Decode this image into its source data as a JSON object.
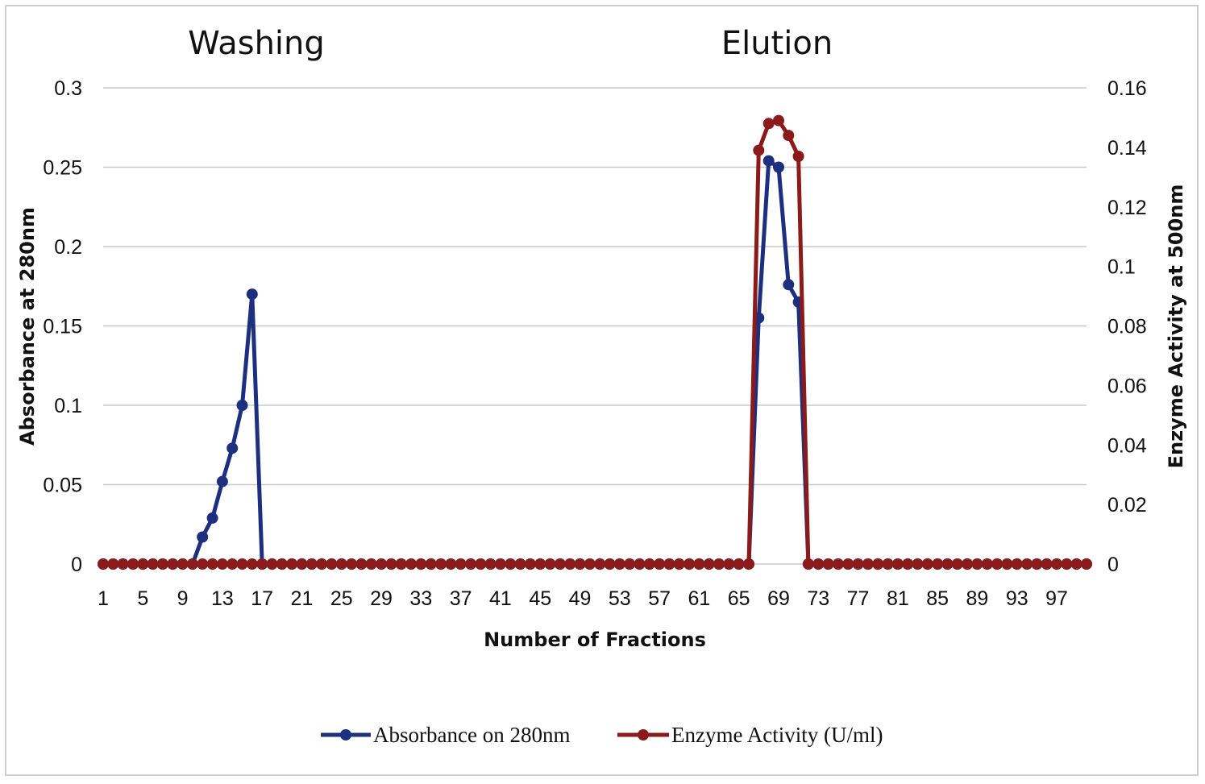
{
  "chart_data": {
    "type": "line",
    "annotations": [
      "Washing",
      "Elution"
    ],
    "xlabel": "Number of Fractions",
    "ylabel_left": "Absorbance at 280nm",
    "ylabel_right": "Enzyme Activity at 500nm",
    "x_range": [
      1,
      100
    ],
    "x_tick_labels": [
      "1",
      "5",
      "9",
      "13",
      "17",
      "21",
      "25",
      "29",
      "33",
      "37",
      "41",
      "45",
      "49",
      "53",
      "57",
      "61",
      "65",
      "69",
      "73",
      "77",
      "81",
      "85",
      "89",
      "93",
      "97"
    ],
    "ylim_left": [
      0,
      0.3
    ],
    "y_ticks_left": [
      "0",
      "0.05",
      "0.1",
      "0.15",
      "0.2",
      "0.25",
      "0.3"
    ],
    "ylim_right": [
      0,
      0.16
    ],
    "y_ticks_right": [
      "0",
      "0.02",
      "0.04",
      "0.06",
      "0.08",
      "0.1",
      "0.12",
      "0.14",
      "0.16"
    ],
    "grid": true,
    "legend_position": "bottom",
    "series": [
      {
        "name": "Absorbance on 280nm",
        "axis": "left",
        "color": "#1f2f7f",
        "default_value": 0,
        "points": [
          [
            10,
            0
          ],
          [
            11,
            0.017
          ],
          [
            12,
            0.029
          ],
          [
            13,
            0.052
          ],
          [
            14,
            0.073
          ],
          [
            15,
            0.1
          ],
          [
            16,
            0.17
          ],
          [
            17,
            0
          ],
          [
            66,
            0
          ],
          [
            67,
            0.155
          ],
          [
            68,
            0.254
          ],
          [
            69,
            0.25
          ],
          [
            70,
            0.176
          ],
          [
            71,
            0.165
          ],
          [
            72,
            0
          ]
        ]
      },
      {
        "name": "Enzyme Activity (U/ml)",
        "axis": "right",
        "color": "#8b1a1a",
        "default_value": 0,
        "points": [
          [
            66,
            0
          ],
          [
            67,
            0.139
          ],
          [
            68,
            0.148
          ],
          [
            69,
            0.149
          ],
          [
            70,
            0.144
          ],
          [
            71,
            0.137
          ],
          [
            72,
            0
          ]
        ]
      }
    ]
  }
}
